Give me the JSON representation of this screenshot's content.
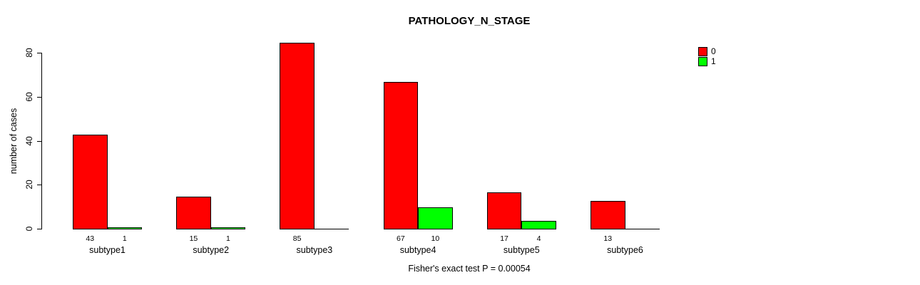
{
  "chart_data": {
    "type": "bar",
    "title": "PATHOLOGY_N_STAGE",
    "xlabel": "",
    "ylabel": "number of cases",
    "categories": [
      "subtype1",
      "subtype2",
      "subtype3",
      "subtype4",
      "subtype5",
      "subtype6"
    ],
    "series": [
      {
        "name": "0",
        "color": "#ff0000",
        "values": [
          43,
          15,
          85,
          67,
          17,
          13
        ]
      },
      {
        "name": "1",
        "color": "#00ff00",
        "values": [
          1,
          1,
          0,
          10,
          4,
          0
        ]
      }
    ],
    "yticks": [
      0,
      20,
      40,
      60,
      80
    ],
    "ylim": [
      0,
      85
    ],
    "grid": false,
    "legend_position": "top-right",
    "legend_labels": [
      "0",
      "1"
    ],
    "bar_value_labels": [
      [
        "43",
        "15",
        "85",
        "67",
        "17",
        "13"
      ],
      [
        "1",
        "1",
        "",
        "10",
        "4",
        ""
      ]
    ],
    "hide_zero_value_labels": true,
    "annotation": "Fisher's exact test P = 0.00054"
  },
  "colors": {
    "series0": "#ff0000",
    "series1": "#00ff00",
    "axis": "#000000",
    "background": "#ffffff"
  }
}
